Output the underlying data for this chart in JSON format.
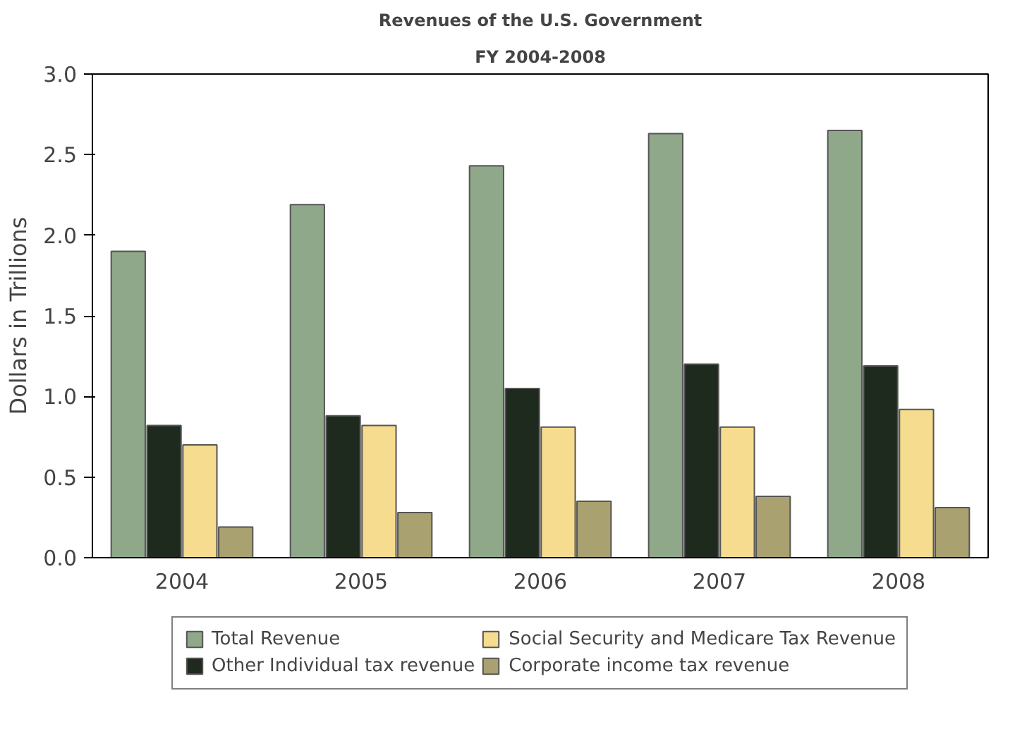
{
  "chart_data": {
    "type": "bar",
    "title": "Revenues of the U.S. Government",
    "subtitle": "FY 2004-2008",
    "ylabel": "Dollars in Trillions",
    "categories": [
      "2004",
      "2005",
      "2006",
      "2007",
      "2008"
    ],
    "series": [
      {
        "name": "Total Revenue",
        "color": "#8fa88a",
        "values": [
          1.9,
          2.19,
          2.43,
          2.63,
          2.65
        ]
      },
      {
        "name": "Other Individual tax revenue",
        "color": "#1f2a1e",
        "values": [
          0.82,
          0.88,
          1.05,
          1.2,
          1.19
        ]
      },
      {
        "name": "Social Security and Medicare Tax Revenue",
        "color": "#f5dc8e",
        "values": [
          0.7,
          0.82,
          0.81,
          0.81,
          0.92
        ]
      },
      {
        "name": "Corporate income tax revenue",
        "color": "#a9a16f",
        "values": [
          0.19,
          0.28,
          0.35,
          0.38,
          0.31
        ]
      }
    ],
    "ylim": [
      0,
      3
    ],
    "yticks": [
      {
        "value": 0,
        "label": "0.0"
      },
      {
        "value": 0.5,
        "label": "0.5"
      },
      {
        "value": 1,
        "label": "1.0"
      },
      {
        "value": 1.5,
        "label": "1.5"
      },
      {
        "value": 2,
        "label": "2.0"
      },
      {
        "value": 2.5,
        "label": "2.5"
      },
      {
        "value": 3,
        "label": "3.0"
      }
    ],
    "grid": false,
    "legend": "bottom"
  }
}
